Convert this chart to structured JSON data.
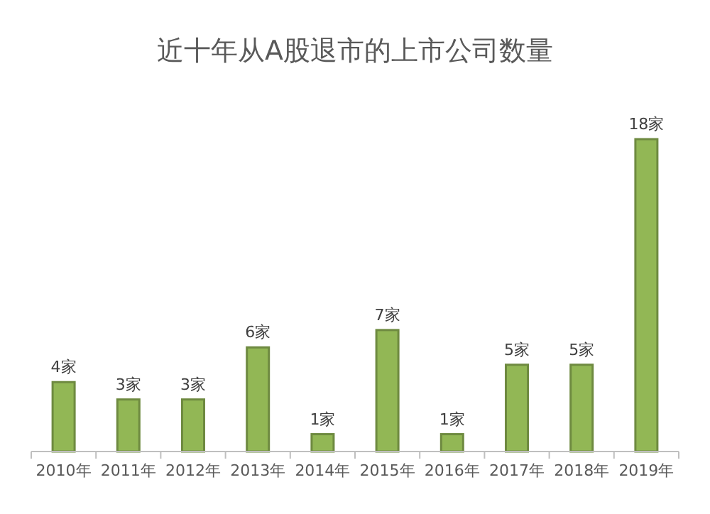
{
  "chart_data": {
    "type": "bar",
    "title": "近十年从A股退市的上市公司数量",
    "categories": [
      "2010年",
      "2011年",
      "2012年",
      "2013年",
      "2014年",
      "2015年",
      "2016年",
      "2017年",
      "2018年",
      "2019年"
    ],
    "values": [
      4,
      3,
      3,
      6,
      1,
      7,
      1,
      5,
      5,
      18
    ],
    "value_labels": [
      "4家",
      "3家",
      "3家",
      "6家",
      "1家",
      "7家",
      "1家",
      "5家",
      "5家",
      "18家"
    ],
    "color": "#92b755"
  }
}
